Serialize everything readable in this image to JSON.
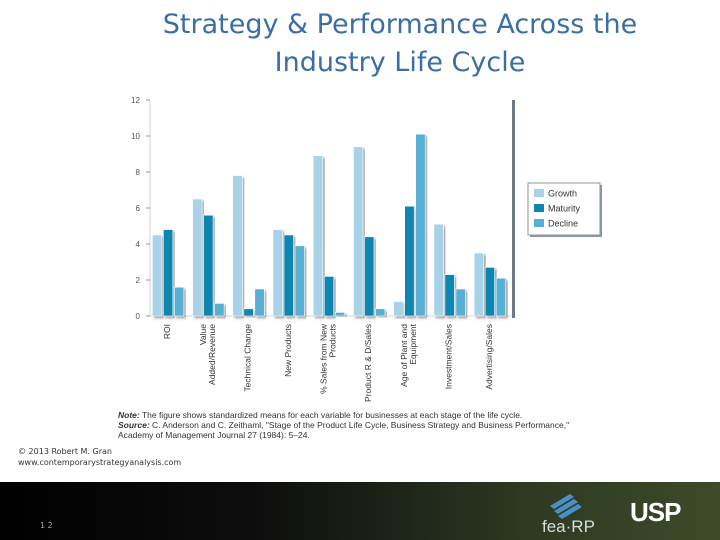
{
  "slide": {
    "title": "Strategy & Performance Across the Industry Life Cycle",
    "copyright_line1": "© 2013 Robert M. Gran",
    "copyright_line2": "www.contemporarystrategyanalysis.com",
    "page_number": "1 2",
    "note_label": "Note:",
    "note_text": " The figure shows standardized means for each variable for businesses at each stage of the life cycle.",
    "source_label": "Source:",
    "source_text": " C. Anderson and C. Zeithaml, \"Stage of the Product Life Cycle, Business Strategy and Business Performance,\" Academy of Management Journal 27 (1984): 5–24.",
    "logo_fea": "fea-RP",
    "logo_usp": "USP"
  },
  "colors": {
    "title": "#3a6ea5",
    "growth": "#a7d2e8",
    "maturity": "#0f86b1",
    "decline": "#55b0d3"
  },
  "chart_data": {
    "type": "bar",
    "categories": [
      "ROI",
      "Value Added/Revenue",
      "Technical Change",
      "New Products",
      "% Sales from New Products",
      "Product R & D/Sales",
      "Age of Plant and Equipment",
      "Investment/Sales",
      "Advertising/Sales"
    ],
    "category_lines": [
      [
        "ROI"
      ],
      [
        "Value",
        "Added/Revenue"
      ],
      [
        "Technical Change"
      ],
      [
        "New Products"
      ],
      [
        "% Sales from New",
        "Products"
      ],
      [
        "Product R & D/Sales"
      ],
      [
        "Age of Plant and",
        "Equipment"
      ],
      [
        "Investment/Sales"
      ],
      [
        "Advertising/Sales"
      ]
    ],
    "series": [
      {
        "name": "Growth",
        "values": [
          4.5,
          6.5,
          7.8,
          4.8,
          8.9,
          9.4,
          0.8,
          5.1,
          3.5
        ]
      },
      {
        "name": "Maturity",
        "values": [
          4.8,
          5.6,
          0.4,
          4.5,
          2.2,
          4.4,
          6.1,
          2.3,
          2.7
        ]
      },
      {
        "name": "Decline",
        "values": [
          1.6,
          0.7,
          1.5,
          3.9,
          0.2,
          0.4,
          10.1,
          1.5,
          2.1
        ]
      }
    ],
    "ylim": [
      0,
      12
    ],
    "yticks": [
      0,
      2,
      4,
      6,
      8,
      10,
      12
    ],
    "legend_position": "right",
    "grid": false
  }
}
